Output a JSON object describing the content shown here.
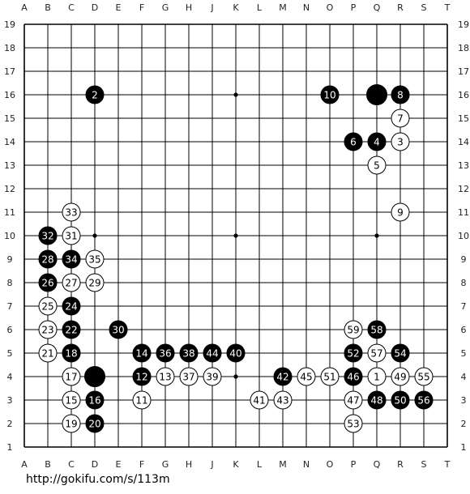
{
  "board": {
    "size": 19,
    "column_labels": [
      "A",
      "B",
      "C",
      "D",
      "E",
      "F",
      "G",
      "H",
      "J",
      "K",
      "L",
      "M",
      "N",
      "O",
      "P",
      "Q",
      "R",
      "S",
      "T"
    ],
    "row_labels": [
      "19",
      "18",
      "17",
      "16",
      "15",
      "14",
      "13",
      "12",
      "11",
      "10",
      "9",
      "8",
      "7",
      "6",
      "5",
      "4",
      "3",
      "2",
      "1"
    ],
    "hoshi": [
      "D16",
      "K16",
      "Q16",
      "D10",
      "K10",
      "Q10",
      "D4",
      "K4",
      "Q4"
    ],
    "stones": [
      {
        "point": "Q4",
        "color": "white",
        "label": "1"
      },
      {
        "point": "D16",
        "color": "black",
        "label": "2"
      },
      {
        "point": "R14",
        "color": "white",
        "label": "3"
      },
      {
        "point": "Q14",
        "color": "black",
        "label": "4"
      },
      {
        "point": "Q13",
        "color": "white",
        "label": "5"
      },
      {
        "point": "P14",
        "color": "black",
        "label": "6"
      },
      {
        "point": "R15",
        "color": "white",
        "label": "7"
      },
      {
        "point": "R16",
        "color": "black",
        "label": "8"
      },
      {
        "point": "R11",
        "color": "white",
        "label": "9"
      },
      {
        "point": "O16",
        "color": "black",
        "label": "10"
      },
      {
        "point": "F3",
        "color": "white",
        "label": "11"
      },
      {
        "point": "F4",
        "color": "black",
        "label": "12"
      },
      {
        "point": "G4",
        "color": "white",
        "label": "13"
      },
      {
        "point": "F5",
        "color": "black",
        "label": "14"
      },
      {
        "point": "C3",
        "color": "white",
        "label": "15"
      },
      {
        "point": "D3",
        "color": "black",
        "label": "16"
      },
      {
        "point": "C4",
        "color": "white",
        "label": "17"
      },
      {
        "point": "C5",
        "color": "black",
        "label": "18"
      },
      {
        "point": "C2",
        "color": "white",
        "label": "19"
      },
      {
        "point": "D2",
        "color": "black",
        "label": "20"
      },
      {
        "point": "B5",
        "color": "white",
        "label": "21"
      },
      {
        "point": "C6",
        "color": "black",
        "label": "22"
      },
      {
        "point": "B6",
        "color": "white",
        "label": "23"
      },
      {
        "point": "C7",
        "color": "black",
        "label": "24"
      },
      {
        "point": "B7",
        "color": "white",
        "label": "25"
      },
      {
        "point": "B8",
        "color": "black",
        "label": "26"
      },
      {
        "point": "C8",
        "color": "white",
        "label": "27"
      },
      {
        "point": "B9",
        "color": "black",
        "label": "28"
      },
      {
        "point": "D8",
        "color": "white",
        "label": "29"
      },
      {
        "point": "E6",
        "color": "black",
        "label": "30"
      },
      {
        "point": "C10",
        "color": "white",
        "label": "31"
      },
      {
        "point": "B10",
        "color": "black",
        "label": "32"
      },
      {
        "point": "C11",
        "color": "white",
        "label": "33"
      },
      {
        "point": "C9",
        "color": "black",
        "label": "34"
      },
      {
        "point": "D9",
        "color": "white",
        "label": "35"
      },
      {
        "point": "G5",
        "color": "black",
        "label": "36"
      },
      {
        "point": "H4",
        "color": "white",
        "label": "37"
      },
      {
        "point": "H5",
        "color": "black",
        "label": "38"
      },
      {
        "point": "J4",
        "color": "white",
        "label": "39"
      },
      {
        "point": "K5",
        "color": "black",
        "label": "40"
      },
      {
        "point": "L3",
        "color": "white",
        "label": "41"
      },
      {
        "point": "M4",
        "color": "black",
        "label": "42"
      },
      {
        "point": "M3",
        "color": "white",
        "label": "43"
      },
      {
        "point": "J5",
        "color": "black",
        "label": "44"
      },
      {
        "point": "N4",
        "color": "white",
        "label": "45"
      },
      {
        "point": "P4",
        "color": "black",
        "label": "46"
      },
      {
        "point": "P3",
        "color": "white",
        "label": "47"
      },
      {
        "point": "Q3",
        "color": "black",
        "label": "48"
      },
      {
        "point": "R4",
        "color": "white",
        "label": "49"
      },
      {
        "point": "R3",
        "color": "black",
        "label": "50"
      },
      {
        "point": "O4",
        "color": "white",
        "label": "51"
      },
      {
        "point": "P5",
        "color": "black",
        "label": "52"
      },
      {
        "point": "P2",
        "color": "white",
        "label": "53"
      },
      {
        "point": "R5",
        "color": "black",
        "label": "54"
      },
      {
        "point": "S4",
        "color": "white",
        "label": "55"
      },
      {
        "point": "S3",
        "color": "black",
        "label": "56"
      },
      {
        "point": "Q5",
        "color": "white",
        "label": "57"
      },
      {
        "point": "Q6",
        "color": "black",
        "label": "58"
      },
      {
        "point": "P6",
        "color": "white",
        "label": "59"
      },
      {
        "point": "Q16",
        "color": "black",
        "label": ""
      },
      {
        "point": "D4",
        "color": "black",
        "label": ""
      }
    ]
  },
  "footer": {
    "url": "http://gokifu.com/s/113m"
  },
  "colors": {
    "line": "#000000",
    "black_stone": "#000000",
    "white_stone": "#ffffff"
  }
}
